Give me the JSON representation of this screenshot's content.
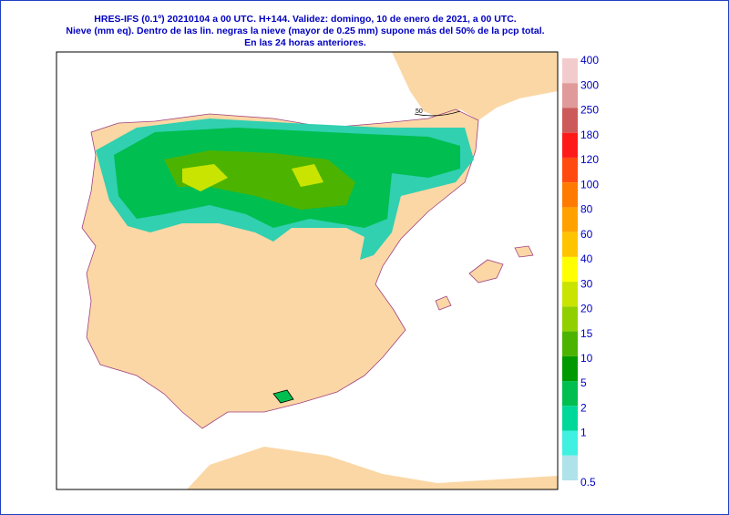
{
  "header": {
    "lines": [
      "HRES-IFS (0.1º) 20210104 a 00 UTC.  H+144. Validez: domingo, 10 de enero de 2021,  a  00 UTC.",
      "Nieve (mm eq). Dentro de las lin. negras la nieve (mayor de 0.25 mm) supone más del 50% de la pcp total.",
      "En las 24 horas anteriores."
    ]
  },
  "map": {
    "contour_label": "50"
  },
  "legend": {
    "levels": [
      400,
      300,
      250,
      180,
      120,
      100,
      80,
      60,
      40,
      30,
      20,
      15,
      10,
      5,
      2,
      1,
      0.5
    ],
    "colors": [
      "#f2cccc",
      "#e09a9a",
      "#cc5a5a",
      "#ff1a1a",
      "#ff4a10",
      "#ff7a00",
      "#ffa200",
      "#ffc400",
      "#ffff00",
      "#c8e400",
      "#90d000",
      "#4cb400",
      "#009a00",
      "#00be50",
      "#00d89a",
      "#40f0e0",
      "#b0e2ea"
    ]
  }
}
